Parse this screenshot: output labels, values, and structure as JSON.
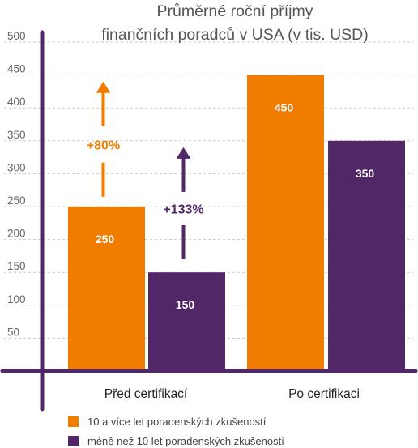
{
  "chart_data": {
    "type": "bar",
    "title_lines": [
      "Průměrné roční příjmy",
      "finančních poradců v USA (v tis. USD)"
    ],
    "categories": [
      "Před certifikací",
      "Po certifikaci"
    ],
    "series": [
      {
        "name": "10 a více let poradenských zkušeností",
        "color": "#F07D00",
        "values": [
          250,
          450
        ]
      },
      {
        "name": "méně než 10 let poradenských zkušeností",
        "color": "#512767",
        "values": [
          150,
          350
        ]
      }
    ],
    "ylim": [
      0,
      500
    ],
    "yticks": [
      50,
      100,
      150,
      200,
      250,
      300,
      350,
      400,
      450,
      500
    ],
    "grid": "dashed",
    "legend_position": "bottom",
    "annotations": [
      {
        "label": "+80%",
        "series": 0,
        "category": 0,
        "from": 265,
        "to": 440,
        "color": "#F07D00"
      },
      {
        "label": "+133%",
        "series": 1,
        "category": 0,
        "from": 170,
        "to": 340,
        "color": "#512767"
      }
    ],
    "axis_color": "#512767"
  }
}
